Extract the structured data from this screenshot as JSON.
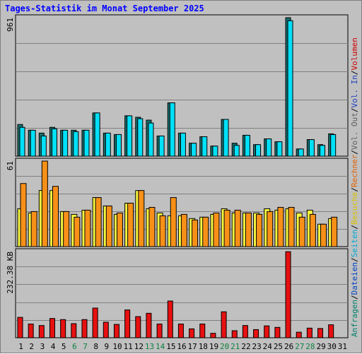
{
  "title": "Tages-Statistik im Monat September 2025",
  "chart_data": [
    {
      "type": "bar",
      "panel": "requests",
      "scale_label": "961",
      "ylim": [
        0,
        961
      ],
      "grid": true,
      "categories": [
        "1",
        "2",
        "3",
        "4",
        "5",
        "6",
        "7",
        "8",
        "9",
        "10",
        "11",
        "12",
        "13",
        "14",
        "15",
        "16",
        "17",
        "18",
        "19",
        "20",
        "21",
        "22",
        "23",
        "24",
        "25",
        "26",
        "27",
        "28",
        "29",
        "30",
        "31"
      ],
      "series": [
        {
          "name": "Anfragen",
          "color": "#187070",
          "values": [
            220,
            180,
            160,
            200,
            180,
            180,
            180,
            300,
            160,
            150,
            280,
            270,
            250,
            140,
            370,
            160,
            90,
            135,
            70,
            255,
            90,
            145,
            80,
            120,
            100,
            961,
            50,
            115,
            80,
            155,
            0
          ]
        },
        {
          "name": "Dateien",
          "color": "#00e0f8",
          "values": [
            200,
            180,
            140,
            190,
            180,
            170,
            180,
            300,
            160,
            150,
            280,
            260,
            230,
            140,
            370,
            160,
            90,
            135,
            70,
            255,
            75,
            145,
            80,
            120,
            100,
            940,
            50,
            115,
            75,
            150,
            0
          ]
        },
        {
          "name": "Seiten",
          "color": "#00b8f8",
          "values": [
            180,
            160,
            130,
            170,
            160,
            150,
            160,
            240,
            140,
            130,
            240,
            230,
            200,
            120,
            320,
            150,
            80,
            120,
            60,
            220,
            60,
            120,
            70,
            100,
            90,
            820,
            40,
            100,
            65,
            130,
            0
          ]
        }
      ]
    },
    {
      "type": "bar",
      "panel": "visits",
      "scale_label": "61",
      "ylim": [
        0,
        61
      ],
      "grid": true,
      "categories": [
        "1",
        "2",
        "3",
        "4",
        "5",
        "6",
        "7",
        "8",
        "9",
        "10",
        "11",
        "12",
        "13",
        "14",
        "15",
        "16",
        "17",
        "18",
        "19",
        "20",
        "21",
        "22",
        "23",
        "24",
        "25",
        "26",
        "27",
        "28",
        "29",
        "30",
        "31"
      ],
      "series": [
        {
          "name": "Besuche",
          "color": "#f8f840",
          "values": [
            27,
            24,
            40,
            40,
            25,
            23,
            26,
            35,
            29,
            23,
            31,
            40,
            27,
            24,
            22,
            22,
            20,
            21,
            23,
            27,
            24,
            24,
            24,
            27,
            26,
            27,
            24,
            26,
            16,
            20,
            0
          ]
        },
        {
          "name": "Rechner",
          "color": "#f89018",
          "values": [
            45,
            25,
            61,
            43,
            25,
            21,
            26,
            35,
            29,
            24,
            31,
            40,
            28,
            22,
            35,
            23,
            19,
            21,
            24,
            26,
            26,
            24,
            23,
            25,
            28,
            28,
            21,
            23,
            16,
            21,
            0
          ]
        }
      ]
    },
    {
      "type": "bar",
      "panel": "volume",
      "scale_label": "232.38 KB",
      "ylim": [
        0,
        232.38
      ],
      "grid": true,
      "categories": [
        "1",
        "2",
        "3",
        "4",
        "5",
        "6",
        "7",
        "8",
        "9",
        "10",
        "11",
        "12",
        "13",
        "14",
        "15",
        "16",
        "17",
        "18",
        "19",
        "20",
        "21",
        "22",
        "23",
        "24",
        "25",
        "26",
        "27",
        "28",
        "29",
        "30",
        "31"
      ],
      "series": [
        {
          "name": "Volumen",
          "color": "#e81010",
          "values": [
            55,
            37,
            33,
            52,
            49,
            38,
            49,
            80,
            42,
            36,
            75,
            57,
            66,
            37,
            99,
            37,
            24,
            37,
            12,
            70,
            19,
            33,
            22,
            32,
            28,
            232,
            15,
            26,
            25,
            35,
            0
          ]
        }
      ]
    }
  ],
  "right_legend": [
    {
      "label": "Anfragen",
      "color": "#00806a"
    },
    {
      "label": "/",
      "color": "#000000"
    },
    {
      "label": "Dateien",
      "color": "#0040c0"
    },
    {
      "label": "/",
      "color": "#000000"
    },
    {
      "label": "Seiten",
      "color": "#00a8d8"
    },
    {
      "label": "/",
      "color": "#000000"
    },
    {
      "label": "Besuche",
      "color": "#d8c000"
    },
    {
      "label": "/",
      "color": "#000000"
    },
    {
      "label": "Rechner",
      "color": "#e06000"
    },
    {
      "label": "/",
      "color": "#000000"
    },
    {
      "label": "Vol. Out",
      "color": "#606060"
    },
    {
      "label": "/",
      "color": "#000000"
    },
    {
      "label": "Vol. In",
      "color": "#2040c0"
    },
    {
      "label": "/",
      "color": "#000000"
    },
    {
      "label": "Volumen",
      "color": "#d00000"
    }
  ],
  "weekend_days": [
    "6",
    "7",
    "13",
    "14",
    "20",
    "21",
    "27",
    "28"
  ],
  "day_label_color": "#000000",
  "weekend_label_color": "#108040"
}
